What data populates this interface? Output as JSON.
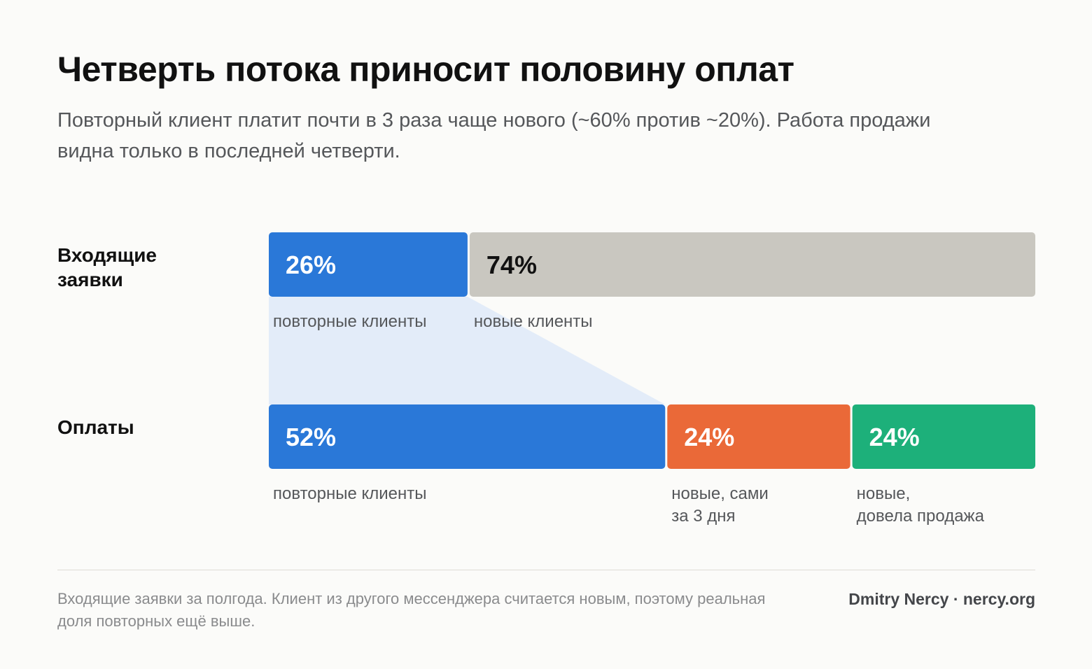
{
  "header": {
    "title": "Четверть потока приносит половину оплат",
    "subtitle": "Повторный клиент платит почти в 3 раза чаще нового (~60% против ~20%). Работа продажи видна только в последней четверти."
  },
  "chart_data": {
    "type": "bar",
    "orientation": "horizontal-stacked-100",
    "rows": [
      {
        "label": "Входящие заявки",
        "segments": [
          {
            "value": 26,
            "display": "26%",
            "caption": "повторные клиенты",
            "color": "#2a78d8",
            "text_color": "#ffffff"
          },
          {
            "value": 74,
            "display": "74%",
            "caption": "новые клиенты",
            "color": "#c9c7c0",
            "text_color": "#111111"
          }
        ]
      },
      {
        "label": "Оплаты",
        "segments": [
          {
            "value": 52,
            "display": "52%",
            "caption": "повторные клиенты",
            "color": "#2a78d8",
            "text_color": "#ffffff"
          },
          {
            "value": 24,
            "display": "24%",
            "caption": "новые, сами\nза 3 дня",
            "color": "#ea6938",
            "text_color": "#ffffff"
          },
          {
            "value": 24,
            "display": "24%",
            "caption": "новые,\nдовела продажа",
            "color": "#1db07a",
            "text_color": "#ffffff"
          }
        ]
      }
    ],
    "connector": {
      "from_row": 0,
      "from_segment": 0,
      "to_row": 1,
      "to_segment": 0,
      "color": "#e3ecf9"
    }
  },
  "footer": {
    "note": "Входящие заявки за полгода. Клиент из другого мессенджера считается новым, поэтому реальная доля повторных ещё выше.",
    "credit": "Dmitry Nercy · nercy.org"
  }
}
